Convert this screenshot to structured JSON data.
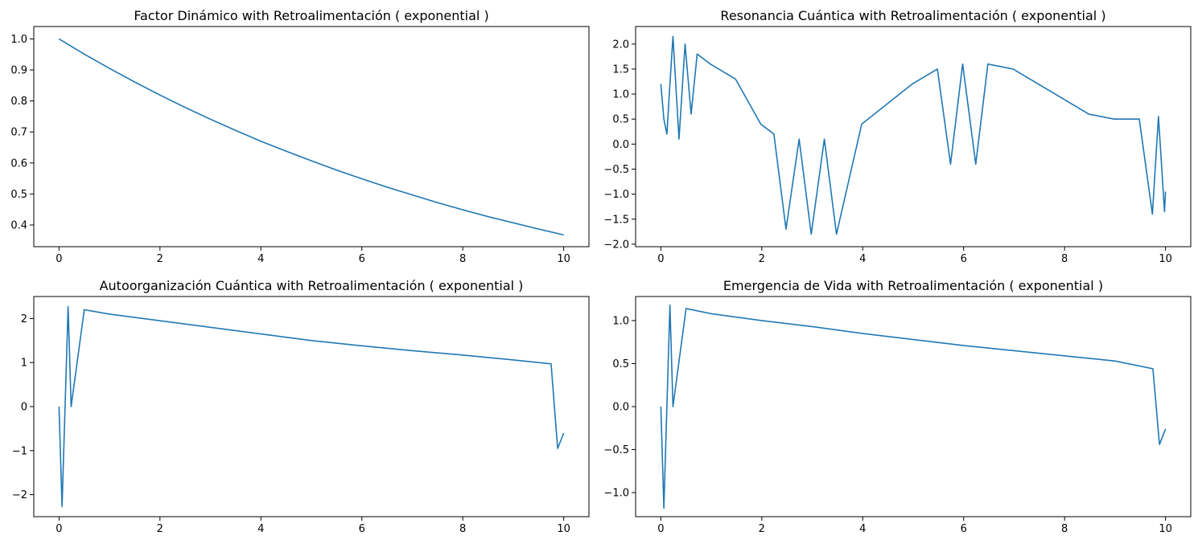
{
  "chart_data": [
    {
      "type": "line",
      "title": "Factor Dinámico with Retroalimentación ( exponential )",
      "xlabel": "",
      "ylabel": "",
      "xlim": [
        -0.5,
        10.5
      ],
      "ylim": [
        0.33,
        1.04
      ],
      "xticks": [
        0,
        2,
        4,
        6,
        8,
        10
      ],
      "xtick_labels": [
        "0",
        "2",
        "4",
        "6",
        "8",
        "10"
      ],
      "yticks": [
        0.4,
        0.5,
        0.6,
        0.7,
        0.8,
        0.9,
        1.0
      ],
      "ytick_labels": [
        "0.4",
        "0.5",
        "0.6",
        "0.7",
        "0.8",
        "0.9",
        "1.0"
      ],
      "grid": false,
      "series": [
        {
          "color": "#1f77b4",
          "x": [
            0,
            0.5,
            1,
            1.5,
            2,
            2.5,
            3,
            3.5,
            4,
            4.5,
            5,
            5.5,
            6,
            6.5,
            7,
            7.5,
            8,
            8.5,
            9,
            9.5,
            10
          ],
          "y": [
            1.0,
            0.951,
            0.905,
            0.861,
            0.819,
            0.779,
            0.741,
            0.705,
            0.67,
            0.638,
            0.607,
            0.577,
            0.549,
            0.522,
            0.497,
            0.472,
            0.449,
            0.427,
            0.407,
            0.387,
            0.368
          ]
        }
      ]
    },
    {
      "type": "line",
      "title": "Resonancia Cuántica with Retroalimentación ( exponential )",
      "xlabel": "",
      "ylabel": "",
      "xlim": [
        -0.5,
        10.5
      ],
      "ylim": [
        -2.05,
        2.35
      ],
      "xticks": [
        0,
        2,
        4,
        6,
        8,
        10
      ],
      "xtick_labels": [
        "0",
        "2",
        "4",
        "6",
        "8",
        "10"
      ],
      "yticks": [
        -2.0,
        -1.5,
        -1.0,
        -0.5,
        0.0,
        0.5,
        1.0,
        1.5,
        2.0
      ],
      "ytick_labels": [
        "−2.0",
        "−1.5",
        "−1.0",
        "−0.5",
        "0.0",
        "0.5",
        "1.0",
        "1.5",
        "2.0"
      ],
      "grid": false,
      "series": [
        {
          "color": "#1f77b4",
          "x": [
            0,
            0.06,
            0.12,
            0.18,
            0.24,
            0.36,
            0.48,
            0.6,
            0.72,
            0.98,
            1.48,
            1.98,
            2.24,
            2.48,
            2.74,
            2.98,
            3.24,
            3.48,
            3.98,
            4.48,
            4.98,
            5.48,
            5.74,
            5.98,
            6.24,
            6.48,
            6.98,
            7.48,
            7.98,
            8.48,
            8.98,
            9.48,
            9.74,
            9.86,
            9.98,
            10.0
          ],
          "y": [
            1.2,
            0.5,
            0.2,
            1.2,
            2.15,
            0.1,
            2.0,
            0.6,
            1.8,
            1.6,
            1.3,
            0.4,
            0.2,
            -1.7,
            0.1,
            -1.8,
            0.1,
            -1.8,
            0.4,
            0.8,
            1.2,
            1.5,
            -0.4,
            1.6,
            -0.4,
            1.6,
            1.5,
            1.2,
            0.9,
            0.6,
            0.5,
            0.5,
            -1.4,
            0.55,
            -1.35,
            -0.95
          ]
        }
      ]
    },
    {
      "type": "line",
      "title": "Autoorganización Cuántica with Retroalimentación ( exponential )",
      "xlabel": "",
      "ylabel": "",
      "xlim": [
        -0.5,
        10.5
      ],
      "ylim": [
        -2.5,
        2.5
      ],
      "xticks": [
        0,
        2,
        4,
        6,
        8,
        10
      ],
      "xtick_labels": [
        "0",
        "2",
        "4",
        "6",
        "8",
        "10"
      ],
      "yticks": [
        -2,
        -1,
        0,
        1,
        2
      ],
      "ytick_labels": [
        "−2",
        "−1",
        "0",
        "1",
        "2"
      ],
      "grid": false,
      "series": [
        {
          "color": "#1f77b4",
          "x": [
            0,
            0.06,
            0.12,
            0.18,
            0.24,
            0.5,
            1.0,
            2.0,
            3.0,
            4.0,
            5.0,
            6.0,
            7.0,
            8.0,
            9.0,
            9.75,
            9.88,
            10.0
          ],
          "y": [
            0.0,
            -2.27,
            0.0,
            2.27,
            0.0,
            2.2,
            2.1,
            1.95,
            1.8,
            1.65,
            1.5,
            1.38,
            1.27,
            1.17,
            1.06,
            0.97,
            -0.95,
            -0.6
          ]
        }
      ]
    },
    {
      "type": "line",
      "title": "Emergencia de Vida with Retroalimentación ( exponential )",
      "xlabel": "",
      "ylabel": "",
      "xlim": [
        -0.5,
        10.5
      ],
      "ylim": [
        -1.28,
        1.28
      ],
      "xticks": [
        0,
        2,
        4,
        6,
        8,
        10
      ],
      "xtick_labels": [
        "0",
        "2",
        "4",
        "6",
        "8",
        "10"
      ],
      "yticks": [
        -1.0,
        -0.5,
        0.0,
        0.5,
        1.0
      ],
      "ytick_labels": [
        "−1.0",
        "−0.5",
        "0.0",
        "0.5",
        "1.0"
      ],
      "grid": false,
      "series": [
        {
          "color": "#1f77b4",
          "x": [
            0,
            0.06,
            0.12,
            0.18,
            0.24,
            0.5,
            1.0,
            2.0,
            3.0,
            4.0,
            5.0,
            6.0,
            7.0,
            8.0,
            9.0,
            9.75,
            9.88,
            10.0
          ],
          "y": [
            0.0,
            -1.18,
            0.0,
            1.18,
            0.0,
            1.14,
            1.08,
            1.0,
            0.93,
            0.85,
            0.78,
            0.71,
            0.65,
            0.59,
            0.53,
            0.44,
            -0.44,
            -0.26
          ]
        }
      ]
    }
  ]
}
